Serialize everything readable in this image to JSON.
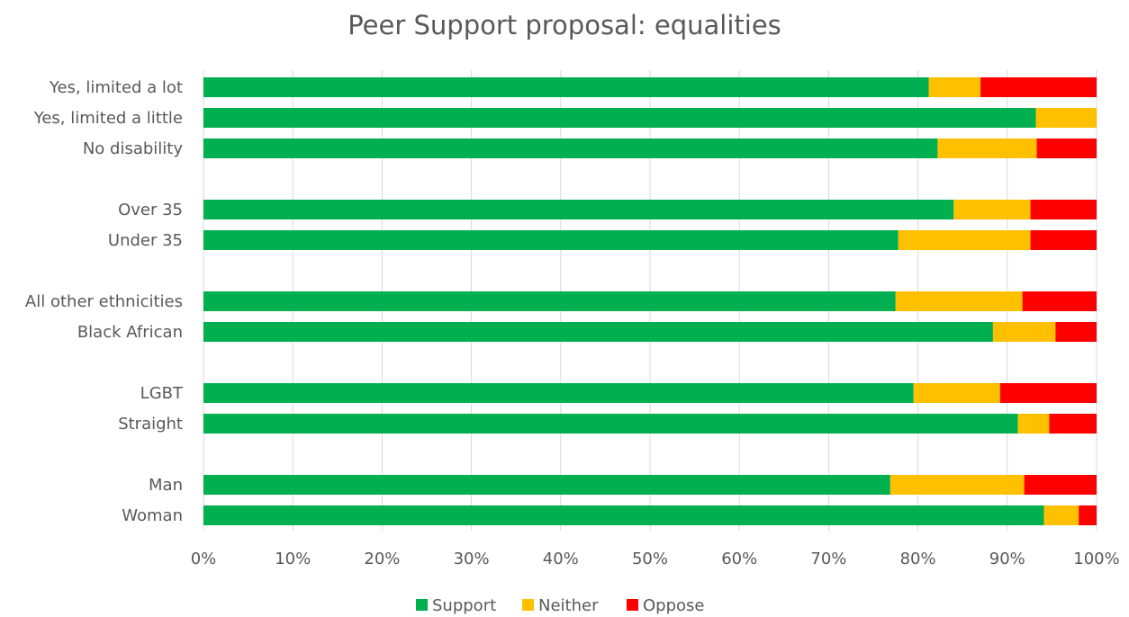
{
  "chart_data": {
    "type": "bar",
    "orientation": "horizontal",
    "stacked": "percent",
    "title": "Peer Support proposal: equalities",
    "xlabel": "",
    "ylabel": "",
    "xlim": [
      0,
      100
    ],
    "x_ticks": [
      "0%",
      "10%",
      "20%",
      "30%",
      "40%",
      "50%",
      "60%",
      "70%",
      "80%",
      "90%",
      "100%"
    ],
    "grid": "vertical",
    "legend_position": "bottom",
    "categories": [
      {
        "label": "Yes, limited a lot",
        "group": 0
      },
      {
        "label": "Yes, limited a little",
        "group": 0
      },
      {
        "label": "No disability",
        "group": 0
      },
      {
        "label": "Over 35",
        "group": 1
      },
      {
        "label": "Under 35",
        "group": 1
      },
      {
        "label": "All other ethnicities",
        "group": 2
      },
      {
        "label": "Black African",
        "group": 2
      },
      {
        "label": "LGBT",
        "group": 3
      },
      {
        "label": "Straight",
        "group": 3
      },
      {
        "label": "Man",
        "group": 4
      },
      {
        "label": "Woman",
        "group": 4
      }
    ],
    "series": [
      {
        "name": "Support",
        "color": "#00b050",
        "values": [
          81.2,
          93.2,
          82.2,
          84.0,
          77.8,
          77.5,
          88.4,
          79.5,
          91.2,
          76.9,
          94.1
        ]
      },
      {
        "name": "Neither",
        "color": "#ffc000",
        "values": [
          5.8,
          6.8,
          11.1,
          8.6,
          14.8,
          14.2,
          7.0,
          9.7,
          3.5,
          15.0,
          3.9
        ]
      },
      {
        "name": "Oppose",
        "color": "#ff0000",
        "values": [
          13.0,
          0.0,
          6.7,
          7.4,
          7.4,
          8.3,
          4.6,
          10.8,
          5.3,
          8.1,
          2.0
        ]
      }
    ]
  }
}
